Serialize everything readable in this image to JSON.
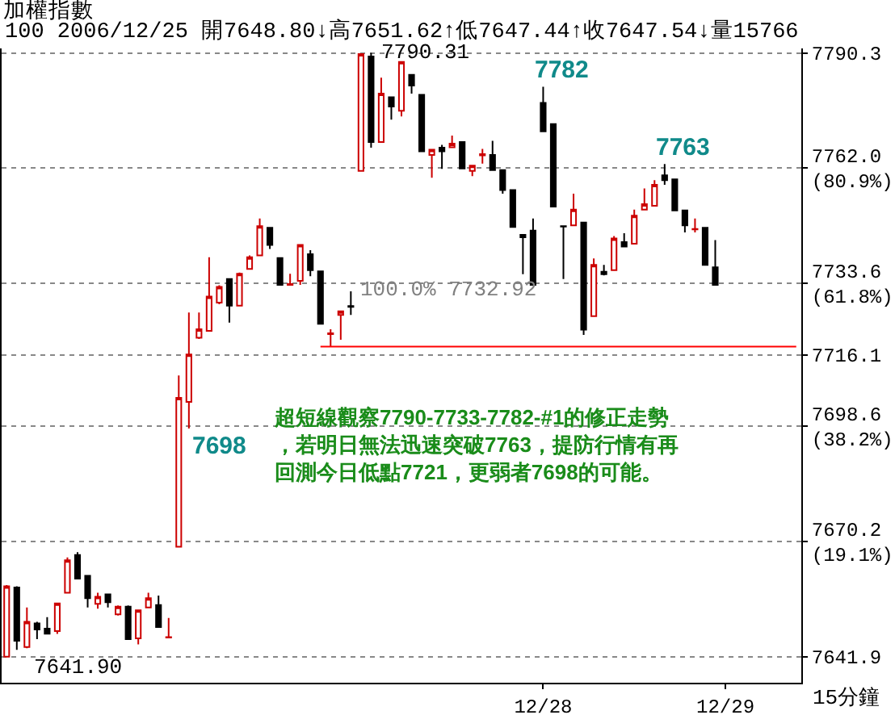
{
  "chart_data": {
    "type": "candlestick",
    "title": "加權指數",
    "subtitle": "100 2006/12/25 開7648.80↓高7651.62↑低7647.44↑收7647.54↓量15766",
    "xlabel": "15分鐘",
    "categories": [
      null,
      null,
      null,
      null,
      null,
      null,
      null,
      null,
      null,
      null,
      null,
      null,
      null,
      null,
      null,
      null,
      null,
      null,
      null,
      null,
      null,
      null,
      null,
      null,
      null,
      null,
      null,
      null,
      null,
      null,
      null,
      null,
      null,
      null,
      null,
      null,
      null,
      null,
      null,
      null,
      null,
      null,
      null,
      null,
      null,
      null,
      null,
      null,
      null,
      null,
      null,
      null,
      null,
      "12/28",
      null,
      null,
      null,
      null,
      null,
      null,
      null,
      null,
      null,
      null,
      null,
      null,
      null,
      null,
      null,
      null,
      null,
      "12/29",
      null,
      null,
      null,
      null,
      null,
      null,
      null
    ],
    "ohlc": [
      [
        7641.9,
        7659.5,
        7641.9,
        7659.2
      ],
      [
        7658.9,
        7659.2,
        7643.6,
        7645.8
      ],
      [
        7644.3,
        7654.0,
        7644.0,
        7650.5
      ],
      [
        7650.1,
        7650.5,
        7646.2,
        7648.6
      ],
      [
        7648.8,
        7651.62,
        7647.44,
        7647.54
      ],
      [
        7648.2,
        7655.0,
        7647.5,
        7655.0
      ],
      [
        7657.6,
        7666.3,
        7657.6,
        7665.6
      ],
      [
        7666.9,
        7667.6,
        7661.1,
        7661.1
      ],
      [
        7661.8,
        7661.8,
        7654.0,
        7656.3
      ],
      [
        7654.9,
        7657.6,
        7653.7,
        7656.6
      ],
      [
        7657.2,
        7657.2,
        7654.0,
        7655.3
      ],
      [
        7652.3,
        7654.5,
        7652.0,
        7654.2
      ],
      [
        7654.2,
        7654.5,
        7646.2,
        7646.2
      ],
      [
        7646.4,
        7653.3,
        7644.9,
        7653.3
      ],
      [
        7654.0,
        7657.6,
        7654.0,
        7656.3
      ],
      [
        7654.6,
        7656.9,
        7649.2,
        7649.2
      ],
      [
        7646.6,
        7651.4,
        7646.6,
        7646.7
      ],
      [
        7668.9,
        7711.0,
        7668.9,
        7705.5
      ],
      [
        7704.5,
        7726.5,
        7698.0,
        7716.2
      ],
      [
        7720.3,
        7726.5,
        7720.0,
        7722.4
      ],
      [
        7722.0,
        7740.1,
        7722.0,
        7730.4
      ],
      [
        7728.9,
        7733.2,
        7728.5,
        7732.8
      ],
      [
        7734.7,
        7734.7,
        7724.0,
        7728.2
      ],
      [
        7728.2,
        7736.3,
        7728.2,
        7736.0
      ],
      [
        7737.2,
        7740.5,
        7737.2,
        7740.1
      ],
      [
        7740.5,
        7749.6,
        7740.5,
        7747.7
      ],
      [
        7747.3,
        7747.3,
        7742.1,
        7743.1
      ],
      [
        7739.9,
        7739.9,
        7733.3,
        7733.3
      ],
      [
        7733.3,
        7736.0,
        7733.3,
        7733.5
      ],
      [
        7734.3,
        7743.1,
        7733.3,
        7743.1
      ],
      [
        7740.8,
        7741.8,
        7735.4,
        7736.9
      ],
      [
        7736.6,
        7736.6,
        7723.7,
        7723.7
      ],
      [
        7721.2,
        7722.4,
        7718.1,
        7721.4
      ],
      [
        7725.9,
        7726.8,
        7719.8,
        7726.8
      ],
      [
        7728.1,
        7731.7,
        7725.9,
        7727.9
      ],
      [
        7761.3,
        7790.0,
        7761.3,
        7790.0
      ],
      [
        7789.4,
        7790.31,
        7767.0,
        7768.4
      ],
      [
        7768.4,
        7784.2,
        7768.4,
        7780.3
      ],
      [
        7779.4,
        7779.4,
        7773.9,
        7777.1
      ],
      [
        7776.1,
        7788.1,
        7774.7,
        7788.1
      ],
      [
        7784.9,
        7784.9,
        7780.3,
        7782.3
      ],
      [
        7780.0,
        7780.0,
        7766.1,
        7766.1
      ],
      [
        7765.2,
        7766.5,
        7759.6,
        7766.5
      ],
      [
        7767.0,
        7767.7,
        7761.8,
        7766.1
      ],
      [
        7767.1,
        7770.0,
        7767.1,
        7768.0
      ],
      [
        7768.4,
        7768.4,
        7761.9,
        7761.9
      ],
      [
        7761.3,
        7762.6,
        7760.0,
        7762.6
      ],
      [
        7765.1,
        7766.7,
        7763.1,
        7765.4
      ],
      [
        7765.2,
        7768.7,
        7761.5,
        7761.5
      ],
      [
        7761.5,
        7761.5,
        7755.7,
        7756.6
      ],
      [
        7756.6,
        7756.6,
        7747.5,
        7747.5
      ],
      [
        7745.6,
        7745.6,
        7735.9,
        7745.0
      ],
      [
        7746.6,
        7749.6,
        7733.3,
        7733.3
      ],
      [
        7778.0,
        7782.0,
        7771.0,
        7771.0
      ],
      [
        7772.8,
        7772.8,
        7752.5,
        7752.5
      ],
      [
        7747.7,
        7747.7,
        7734.7,
        7747.6
      ],
      [
        7747.9,
        7755.7,
        7747.9,
        7751.8
      ],
      [
        7748.6,
        7748.6,
        7721.0,
        7722.3
      ],
      [
        7725.6,
        7739.8,
        7725.6,
        7738.2
      ],
      [
        7736.5,
        7738.2,
        7735.6,
        7735.9
      ],
      [
        7736.9,
        7745.3,
        7736.9,
        7744.7
      ],
      [
        7743.8,
        7746.0,
        7742.7,
        7742.7
      ],
      [
        7743.4,
        7751.8,
        7743.4,
        7750.3
      ],
      [
        7751.8,
        7757.0,
        7751.8,
        7753.1
      ],
      [
        7752.7,
        7759.0,
        7752.7,
        7757.9
      ],
      [
        7760.2,
        7763.0,
        7757.9,
        7759.0
      ],
      [
        7759.2,
        7759.2,
        7751.6,
        7751.6
      ],
      [
        7751.6,
        7751.6,
        7746.2,
        7747.9
      ],
      [
        7746.9,
        7749.6,
        7746.2,
        7747.0
      ],
      [
        7747.3,
        7747.3,
        7738.2,
        7738.2
      ],
      [
        7737.6,
        7744.3,
        7733.3,
        7733.3
      ],
      null,
      null,
      null,
      null,
      null,
      null,
      null,
      null
    ],
    "colors": [
      "#cc0000",
      "#000000",
      "#cc0000",
      "#000000",
      "#000000",
      "#cc0000",
      "#cc0000",
      "#000000",
      "#000000",
      "#cc0000",
      "#000000",
      "#cc0000",
      "#000000",
      "#cc0000",
      "#cc0000",
      "#000000",
      "#cc0000",
      "#cc0000",
      "#cc0000",
      "#cc0000",
      "#cc0000",
      "#cc0000",
      "#000000",
      "#cc0000",
      "#cc0000",
      "#cc0000",
      "#000000",
      "#000000",
      "#cc0000",
      "#cc0000",
      "#000000",
      "#000000",
      "#cc0000",
      "#cc0000",
      "#000000",
      "#cc0000",
      "#000000",
      "#cc0000",
      "#000000",
      "#cc0000",
      "#000000",
      "#000000",
      "#cc0000",
      "#000000",
      "#cc0000",
      "#000000",
      "#cc0000",
      "#cc0000",
      "#000000",
      "#000000",
      "#000000",
      "#000000",
      "#000000",
      "#000000",
      "#000000",
      "#000000",
      "#cc0000",
      "#000000",
      "#cc0000",
      "#000000",
      "#cc0000",
      "#000000",
      "#cc0000",
      "#cc0000",
      "#cc0000",
      "#000000",
      "#000000",
      "#000000",
      "#cc0000",
      "#000000",
      "#000000",
      null,
      null,
      null,
      null,
      null,
      null,
      null,
      null
    ],
    "series": [
      {
        "type": "line",
        "color": "#ff0000",
        "values": [
          null,
          null,
          null,
          null,
          null,
          null,
          null,
          null,
          null,
          null,
          null,
          null,
          null,
          null,
          null,
          null,
          null,
          null,
          null,
          null,
          null,
          null,
          null,
          null,
          null,
          null,
          null,
          null,
          null,
          null,
          null,
          7718.1,
          7718.1,
          7718.1,
          7718.1,
          7718.1,
          7718.1,
          7718.1,
          7718.1,
          7718.1,
          7718.1,
          7718.1,
          7718.1,
          7718.1,
          7718.1,
          7718.1,
          7718.1,
          7718.1,
          7718.1,
          7718.1,
          7718.1,
          7718.1,
          7718.1,
          7718.1,
          7718.1,
          7718.1,
          7718.1,
          7718.1,
          7718.1,
          7718.1,
          7718.1,
          7718.1,
          7718.1,
          7718.1,
          7718.1,
          7718.1,
          7718.1,
          7718.1,
          7718.1,
          7718.1,
          7718.1,
          7718.1,
          7718.1,
          7718.1,
          7718.1,
          7718.1,
          7718.1,
          7718.1,
          7718.1
        ]
      }
    ],
    "annotations": [
      "7790.31",
      "7782",
      "7763",
      "7698",
      "7641.90",
      "100.0% 7732.92",
      "超短線觀察7790-7733-7782-#1的修正走勢，若明日無法迅速突破7763，提防行情有再回測今日低點7721，更弱者7698的可能。"
    ],
    "ylim": [
      7635.5,
      7791.4
    ],
    "yticks": [
      7641.9,
      {
        "value": 7670.2,
        "label": "7670.2\n(19.1%)"
      },
      {
        "value": 7698.6,
        "label": "7698.6\n(38.2%)"
      },
      7716.1,
      {
        "value": 7733.6,
        "label": "7733.6\n(61.8%)"
      },
      {
        "value": 7762.0,
        "label": "7762.0\n(80.9%)"
      },
      7790.3
    ],
    "grid": "y"
  }
}
